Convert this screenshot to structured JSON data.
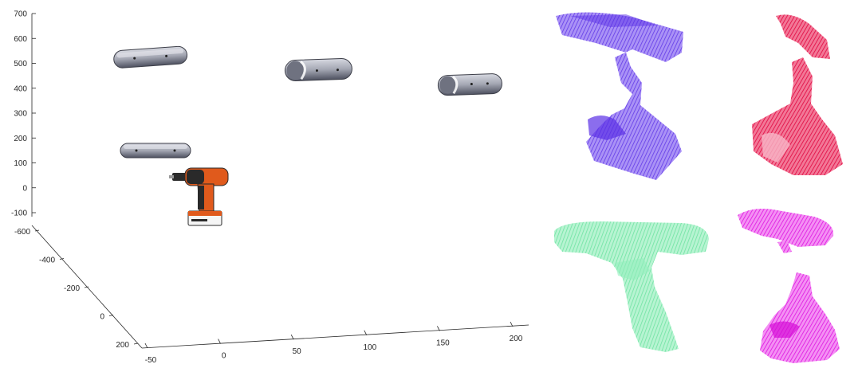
{
  "chart_data": {
    "type": "scatter",
    "projection": "3d",
    "title": "",
    "xlabel": "",
    "ylabel": "",
    "zlabel": "",
    "grid": false,
    "x_axis": {
      "ticks": [
        "-50",
        "0",
        "50",
        "100",
        "150",
        "200"
      ]
    },
    "y_axis": {
      "ticks": [
        "-600",
        "-400",
        "-200",
        "0",
        "200"
      ]
    },
    "z_axis": {
      "ticks": [
        "-100",
        "0",
        "100",
        "200",
        "300",
        "400",
        "500",
        "600",
        "700"
      ]
    },
    "objects": [
      {
        "name": "pill-gripper-1",
        "icon": "rounded-pill-shape",
        "color": "#a9abb7"
      },
      {
        "name": "pill-gripper-2",
        "icon": "rounded-pill-shape",
        "color": "#a9abb7"
      },
      {
        "name": "pill-gripper-3",
        "icon": "rounded-pill-shape",
        "color": "#a9abb7"
      },
      {
        "name": "pill-gripper-4",
        "icon": "rounded-pill-shape",
        "color": "#a9abb7"
      },
      {
        "name": "power-drill",
        "icon": "cordless-drill",
        "color": "#e05a1c"
      }
    ]
  },
  "point_clouds": [
    {
      "name": "drill-cloud-blue",
      "color": "#6a3df0"
    },
    {
      "name": "drill-cloud-red",
      "color": "#e8174f"
    },
    {
      "name": "drill-cloud-green",
      "color": "#7de8ad"
    },
    {
      "name": "drill-cloud-magenta",
      "color": "#e62ce8"
    }
  ]
}
